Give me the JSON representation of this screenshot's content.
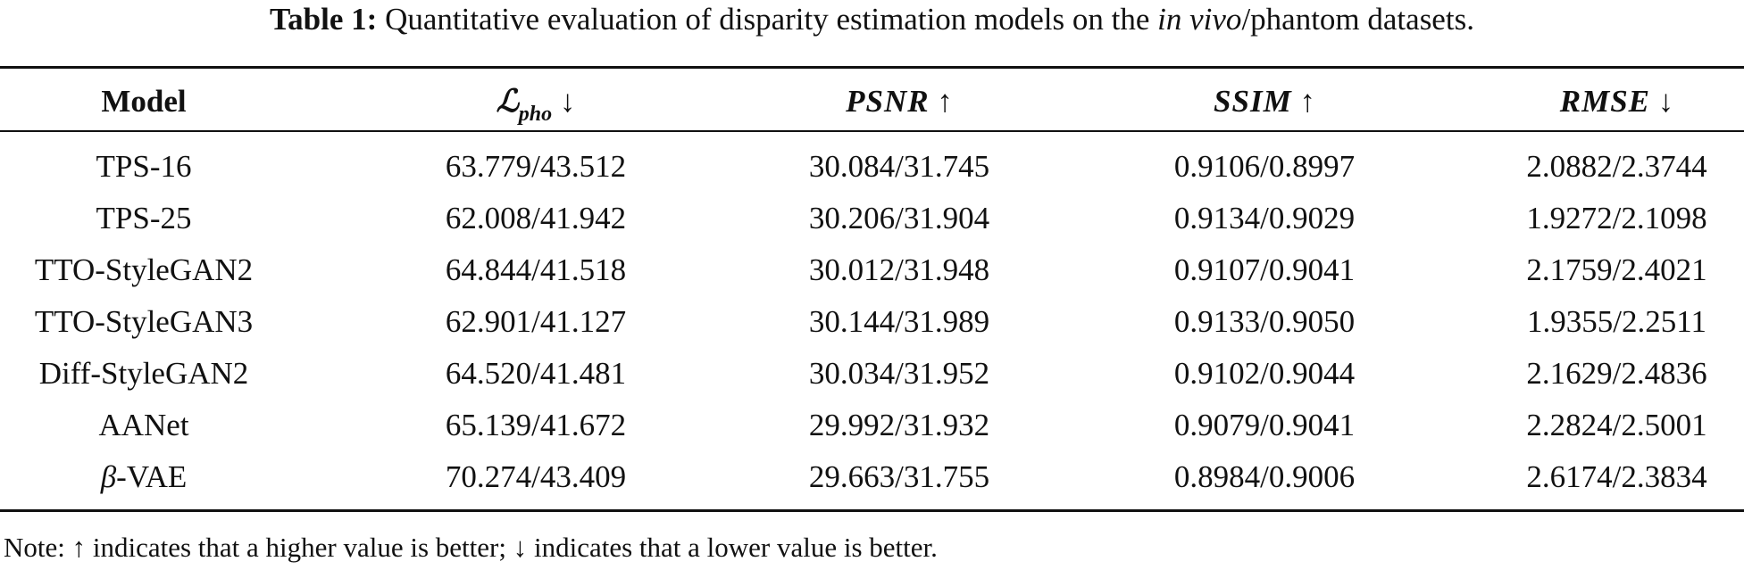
{
  "caption": {
    "label": "Table 1:",
    "text_before": " Quantitative evaluation of disparity estimation models on the ",
    "italic": "in vivo",
    "text_after": "/phantom datasets."
  },
  "header": {
    "model": "Model",
    "col1": {
      "symbol": "ℒ",
      "subscript": "pho",
      "arrow": "↓"
    },
    "col2": {
      "name": "PSNR",
      "arrow": "↑"
    },
    "col3": {
      "name": "SSIM",
      "arrow": "↑"
    },
    "col4": {
      "name": "RMSE",
      "arrow": "↓"
    }
  },
  "rows": [
    {
      "model_prefix": "",
      "model": "TPS-16",
      "pho": "63.779/43.512",
      "psnr": "30.084/31.745",
      "ssim": "0.9106/0.8997",
      "rmse": "2.0882/2.3744"
    },
    {
      "model_prefix": "",
      "model": "TPS-25",
      "pho": "62.008/41.942",
      "psnr": "30.206/31.904",
      "ssim": "0.9134/0.9029",
      "rmse": "1.9272/2.1098"
    },
    {
      "model_prefix": "",
      "model": "TTO-StyleGAN2",
      "pho": "64.844/41.518",
      "psnr": "30.012/31.948",
      "ssim": "0.9107/0.9041",
      "rmse": "2.1759/2.4021"
    },
    {
      "model_prefix": "",
      "model": "TTO-StyleGAN3",
      "pho": "62.901/41.127",
      "psnr": "30.144/31.989",
      "ssim": "0.9133/0.9050",
      "rmse": "1.9355/2.2511"
    },
    {
      "model_prefix": "",
      "model": "Diff-StyleGAN2",
      "pho": "64.520/41.481",
      "psnr": "30.034/31.952",
      "ssim": "0.9102/0.9044",
      "rmse": "2.1629/2.4836"
    },
    {
      "model_prefix": "",
      "model": "AANet",
      "pho": "65.139/41.672",
      "psnr": "29.992/31.932",
      "ssim": "0.9079/0.9041",
      "rmse": "2.2824/2.5001"
    },
    {
      "model_prefix": "β",
      "model": "-VAE",
      "pho": "70.274/43.409",
      "psnr": "29.663/31.755",
      "ssim": "0.8984/0.9006",
      "rmse": "2.6174/2.3834"
    }
  ],
  "note": "Note: ↑ indicates that a higher value is better; ↓ indicates that a lower value is better."
}
